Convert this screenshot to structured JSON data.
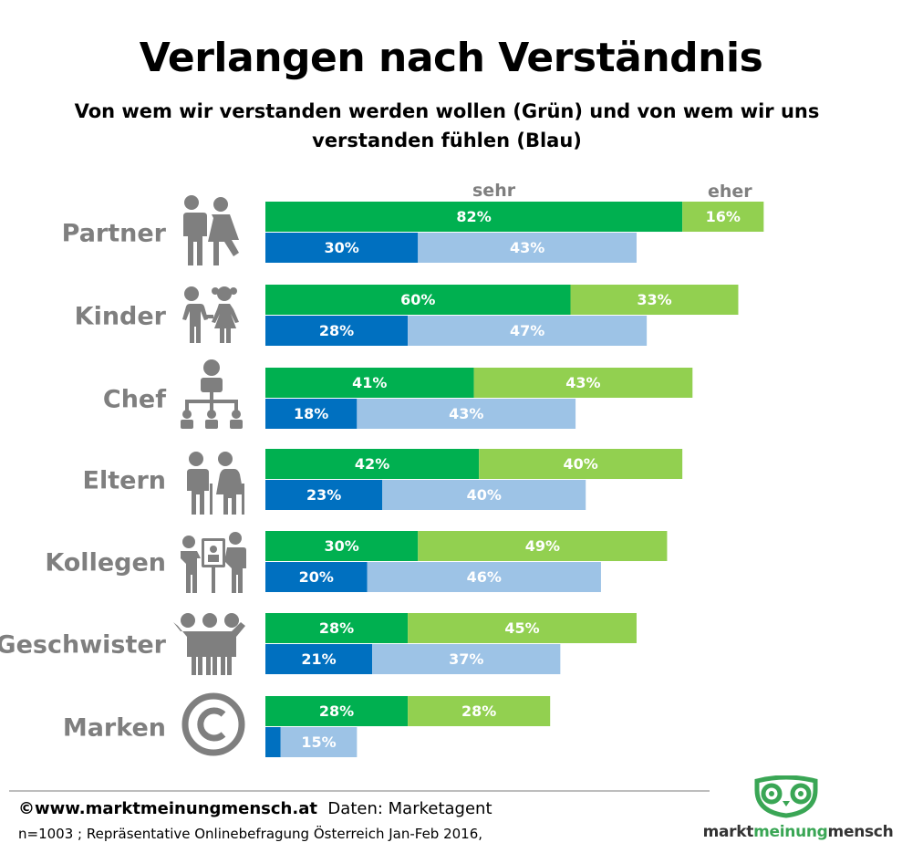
{
  "title": "Verlangen nach Verständnis",
  "subtitle": "Von wem wir verstanden werden wollen (Grün) und von wem wir uns verstanden fühlen (Blau)",
  "legend": {
    "sehr": "sehr",
    "eher": "eher"
  },
  "colors": {
    "green_dark": "#00b050",
    "green_light": "#92d050",
    "blue_dark": "#0070c0",
    "blue_light": "#9dc3e6",
    "label_gray": "#7f7f7f"
  },
  "chart_data": {
    "type": "bar",
    "orientation": "horizontal",
    "stacked": true,
    "categories": [
      "Partner",
      "Kinder",
      "Chef",
      "Eltern",
      "Kollegen",
      "Geschwister",
      "Marken"
    ],
    "icons": [
      "couple-icon",
      "children-icon",
      "org-chart-icon",
      "elderly-couple-icon",
      "colleagues-icon",
      "siblings-icon",
      "copyright-icon"
    ],
    "series": [
      {
        "group": "Grün",
        "stack": [
          "sehr",
          "eher"
        ],
        "values_sehr": [
          82,
          60,
          41,
          42,
          30,
          28,
          28
        ],
        "values_eher": [
          16,
          33,
          43,
          40,
          49,
          45,
          28
        ]
      },
      {
        "group": "Blau",
        "stack": [
          "sehr",
          "eher"
        ],
        "values_sehr": [
          30,
          28,
          18,
          23,
          20,
          21,
          3
        ],
        "values_eher": [
          43,
          47,
          43,
          40,
          46,
          37,
          15
        ]
      }
    ],
    "labels": {
      "green_sehr": [
        "82%",
        "60%",
        "41%",
        "42%",
        "30%",
        "28%",
        "28%"
      ],
      "green_eher": [
        "16%",
        "33%",
        "43%",
        "40%",
        "49%",
        "45%",
        "28%"
      ],
      "blue_sehr": [
        "30%",
        "28%",
        "18%",
        "23%",
        "20%",
        "21%",
        ""
      ],
      "blue_eher": [
        "43%",
        "47%",
        "43%",
        "40%",
        "46%",
        "37%",
        "15%"
      ]
    }
  },
  "footer": {
    "website": "©www.marktmeinungmensch.at",
    "source": "Daten: Marketagent",
    "note": "n=1003 ; Repräsentative  Onlinebefragung Österreich Jan-Feb 2016,"
  },
  "logo": {
    "part1": "markt",
    "part2": "meinung",
    "part3": "mensch"
  }
}
